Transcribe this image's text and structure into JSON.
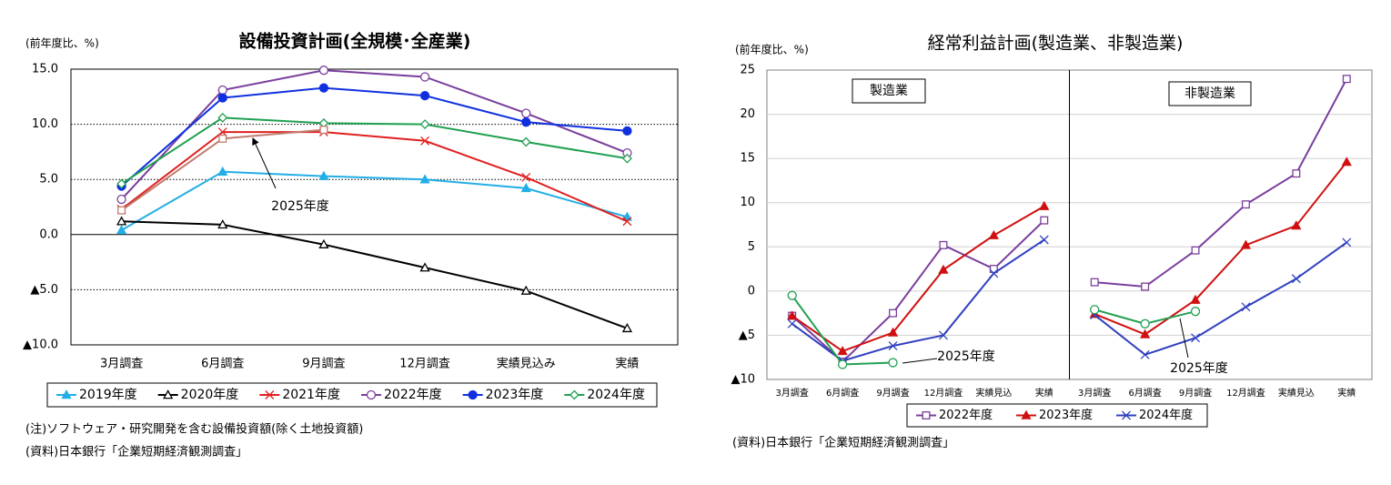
{
  "chart_data": [
    {
      "type": "line",
      "title": "設備投資計画(全規模･全産業)",
      "ylabel": "(前年度比、%)",
      "categories": [
        "3月調査",
        "6月調査",
        "9月調査",
        "12月調査",
        "実績見込み",
        "実績"
      ],
      "series": [
        {
          "name": "2019年度",
          "color": "#22aee6",
          "marker": "triangle",
          "values": [
            0.4,
            5.7,
            5.3,
            5.0,
            4.2,
            1.6
          ]
        },
        {
          "name": "2020年度",
          "color": "#000000",
          "marker": "triangle-open",
          "values": [
            1.2,
            0.9,
            -0.9,
            -3.0,
            -5.1,
            -8.5
          ]
        },
        {
          "name": "2021年度",
          "color": "#e02020",
          "marker": "x",
          "values": [
            2.3,
            9.3,
            9.3,
            8.5,
            5.2,
            1.2
          ]
        },
        {
          "name": "2022年度",
          "color": "#7a3e9d",
          "marker": "circle-open",
          "values": [
            3.2,
            13.1,
            14.9,
            14.3,
            11.0,
            7.4
          ]
        },
        {
          "name": "2023年度",
          "color": "#1030e0",
          "marker": "circle",
          "values": [
            4.4,
            12.4,
            13.3,
            12.6,
            10.2,
            9.4
          ]
        },
        {
          "name": "2024年度",
          "color": "#20a050",
          "marker": "diamond-open",
          "values": [
            4.6,
            10.6,
            10.1,
            10.0,
            8.4,
            6.9
          ]
        },
        {
          "name": "2025年度",
          "color": "#c07b6e",
          "marker": "square-open",
          "in_legend": false,
          "values": [
            2.2,
            8.7,
            9.5,
            null,
            null,
            null
          ]
        }
      ],
      "annotations": [
        "2025年度"
      ],
      "ylim": [
        -10,
        15
      ],
      "yticks": [
        {
          "value": -10,
          "label": "▲10.0"
        },
        {
          "value": -5,
          "label": "▲5.0"
        },
        {
          "value": 0,
          "label": "0.0"
        },
        {
          "value": 5,
          "label": "5.0"
        },
        {
          "value": 10,
          "label": "10.0"
        },
        {
          "value": 15,
          "label": "15.0"
        }
      ],
      "grid": true,
      "notes": [
        "(注)ソフトウェア・研究開発を含む設備投資額(除く土地投資額)",
        "(資料)日本銀行「企業短期経済観測調査」"
      ]
    },
    {
      "type": "line",
      "title": "経常利益計画(製造業、非製造業)",
      "ylabel": "(前年度比、%)",
      "panels": [
        "製造業",
        "非製造業"
      ],
      "categories": [
        "3月調査",
        "6月調査",
        "9月調査",
        "12月調査",
        "実績見込",
        "実績",
        "3月調査",
        "6月調査",
        "9月調査",
        "12月調査",
        "実績見込",
        "実績"
      ],
      "series": [
        {
          "name": "2022年度",
          "color": "#7a3e9d",
          "marker": "square-open",
          "values": [
            -2.8,
            -8.0,
            -2.5,
            5.2,
            2.5,
            8.0,
            1.0,
            0.5,
            4.6,
            9.8,
            13.3,
            24.0
          ]
        },
        {
          "name": "2023年度",
          "color": "#d01010",
          "marker": "triangle",
          "values": [
            -2.8,
            -6.8,
            -4.7,
            2.4,
            6.3,
            9.6,
            -2.6,
            -4.9,
            -1.0,
            5.2,
            7.4,
            14.6
          ]
        },
        {
          "name": "2024年度",
          "color": "#3040c0",
          "marker": "x",
          "values": [
            -3.7,
            -7.9,
            -6.2,
            -5.0,
            2.0,
            5.8,
            -2.7,
            -7.2,
            -5.3,
            -1.8,
            1.4,
            5.5
          ]
        },
        {
          "name": "2025年度",
          "color": "#20a050",
          "marker": "circle-open",
          "in_legend": false,
          "values": [
            -0.5,
            -8.3,
            -8.1,
            null,
            null,
            null,
            -2.1,
            -3.7,
            -2.3,
            null,
            null,
            null
          ]
        }
      ],
      "annotations": [
        "2025年度",
        "2025年度"
      ],
      "ylim": [
        -10,
        25
      ],
      "yticks": [
        {
          "value": -10,
          "label": "▲10"
        },
        {
          "value": -5,
          "label": "▲5"
        },
        0,
        5,
        10,
        15,
        20,
        25
      ],
      "grid": true,
      "notes": [
        "(資料)日本銀行「企業短期経済観測調査」"
      ]
    }
  ]
}
